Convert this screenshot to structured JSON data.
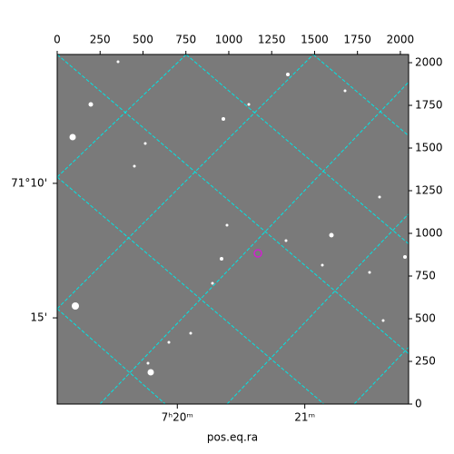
{
  "chart_data": {
    "type": "image",
    "xlabel": "pos.eq.ra",
    "xlim": [
      0,
      2048
    ],
    "ylim": [
      0,
      2048
    ],
    "xticks": [
      0,
      250,
      500,
      750,
      1000,
      1250,
      1500,
      1750,
      2000
    ],
    "yticks": [
      0,
      250,
      500,
      750,
      1000,
      1250,
      1500,
      1750,
      2000
    ],
    "ra_ticks": [
      {
        "value": 700,
        "label": "7ʰ20ᵐ"
      },
      {
        "value": 1443,
        "label": "21ᵐ"
      }
    ],
    "dec_ticks": [
      {
        "value": 1293,
        "label": "71°10'"
      },
      {
        "value": 505,
        "label": "15'"
      }
    ]
  }
}
